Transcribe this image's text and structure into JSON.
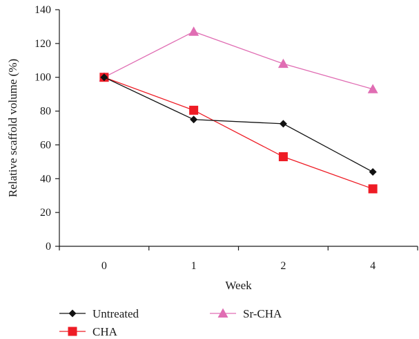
{
  "chart_data": {
    "type": "line",
    "categories": [
      "0",
      "1",
      "2",
      "4"
    ],
    "xlabel": "Week",
    "ylabel": "Relative scaffold volume (%)",
    "ylim": [
      0,
      140
    ],
    "yticks": [
      "0",
      "20",
      "40",
      "60",
      "80",
      "100",
      "120",
      "140"
    ],
    "grid": false,
    "legend_position": "bottom",
    "series": [
      {
        "name": "Untreated",
        "values": [
          100,
          75,
          72.5,
          44
        ],
        "color": "#111111",
        "marker": "diamond"
      },
      {
        "name": "CHA",
        "values": [
          100,
          80.5,
          53,
          34
        ],
        "color": "#ee1c25",
        "marker": "square"
      },
      {
        "name": "Sr-CHA",
        "values": [
          100,
          127,
          108,
          93
        ],
        "color": "#e06db3",
        "marker": "triangle"
      }
    ]
  }
}
